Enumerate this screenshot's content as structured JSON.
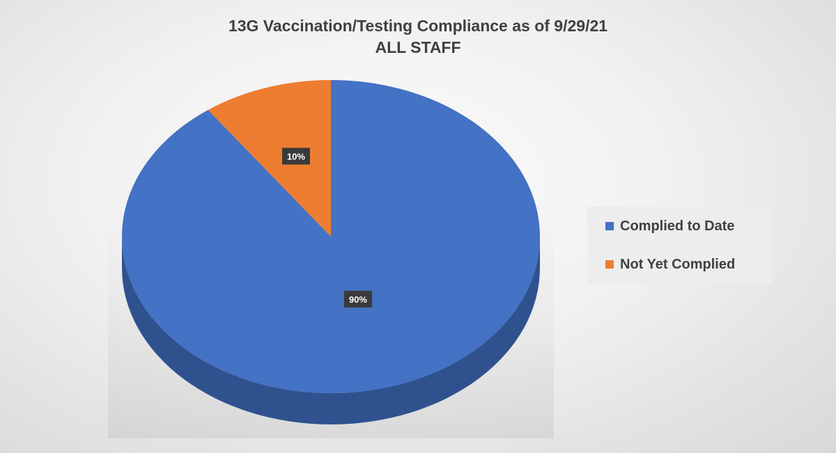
{
  "chart_data": {
    "type": "pie",
    "title": "13G Vaccination/Testing Compliance as of 9/29/21",
    "subtitle": "ALL STAFF",
    "categories": [
      "Complied to Date",
      "Not Yet Complied"
    ],
    "values": [
      90,
      10
    ],
    "data_labels": [
      "90%",
      "10%"
    ],
    "colors": [
      "#4472c4",
      "#ed7d31"
    ],
    "side_colors": [
      "#2f528f",
      "#b85a1f"
    ],
    "legend_position": "right",
    "style": "3d"
  }
}
